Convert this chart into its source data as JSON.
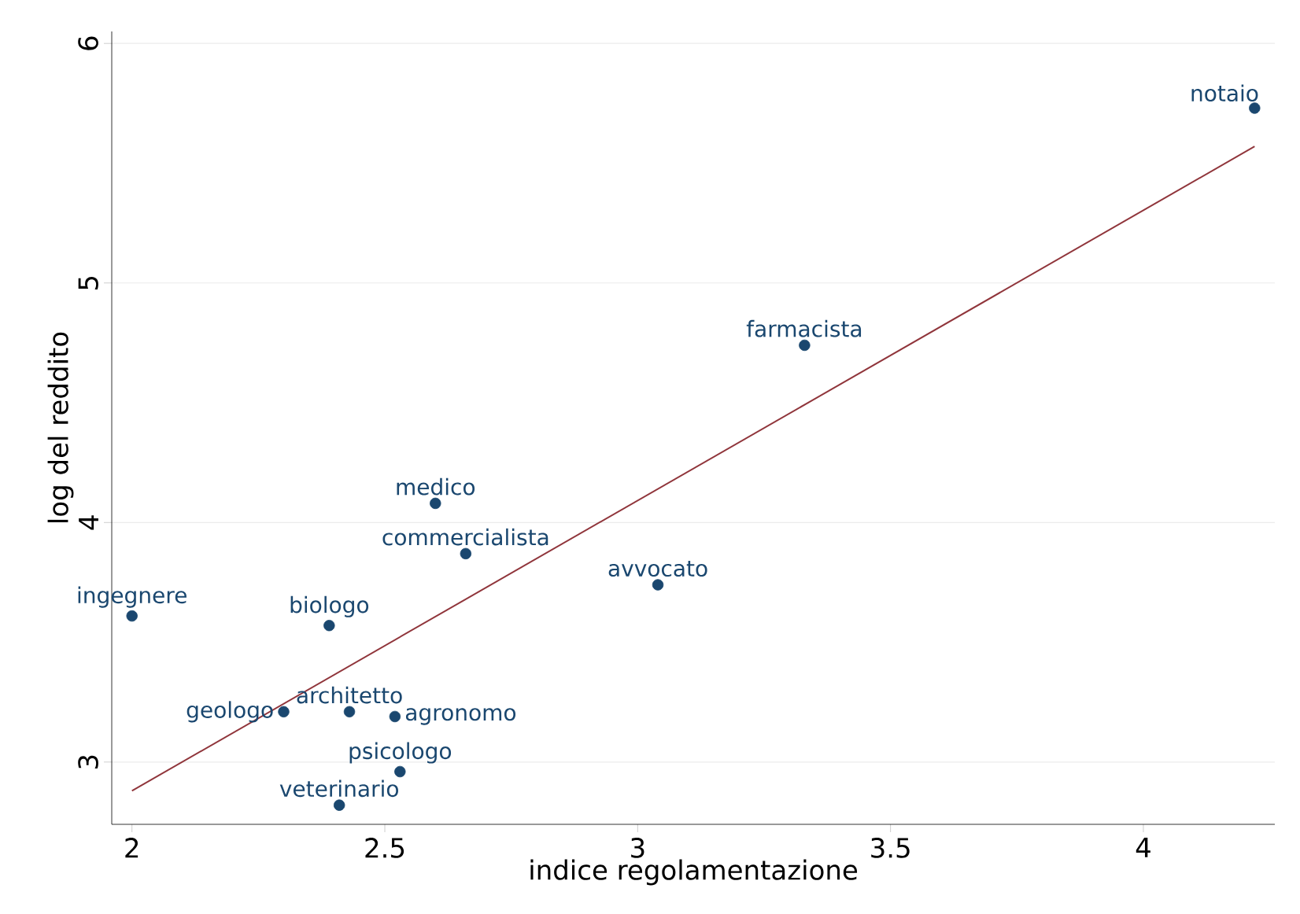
{
  "chart_data": {
    "type": "scatter",
    "xlabel": "indice regolamentazione",
    "ylabel": "log del reddito",
    "xlim": [
      1.96,
      4.26
    ],
    "ylim": [
      2.74,
      6.05
    ],
    "xticks": [
      2,
      2.5,
      3,
      3.5,
      4
    ],
    "yticks": [
      3,
      4,
      5,
      6
    ],
    "grid": "y",
    "marker": "circle",
    "series": [
      {
        "color": "#1a476f",
        "x": [
          4.22,
          3.33,
          2.6,
          2.66,
          3.04,
          2.0,
          2.39,
          2.3,
          2.43,
          2.52,
          2.53,
          2.41
        ],
        "values": [
          5.73,
          4.74,
          4.08,
          3.87,
          3.74,
          3.61,
          3.57,
          3.21,
          3.21,
          3.19,
          2.96,
          2.82
        ]
      },
      {
        "type": "line",
        "marker": "none",
        "color": "#90353b",
        "x": [
          2.0,
          4.22
        ],
        "values": [
          2.88,
          5.57
        ]
      }
    ],
    "annotations": [
      {
        "text": "notaio",
        "x": 4.22,
        "y": 5.73
      },
      {
        "text": "farmacista",
        "x": 3.33,
        "y": 4.74
      },
      {
        "text": "medico",
        "x": 2.6,
        "y": 4.08
      },
      {
        "text": "commercialista",
        "x": 2.66,
        "y": 3.87
      },
      {
        "text": "avvocato",
        "x": 3.04,
        "y": 3.74
      },
      {
        "text": "ingegnere",
        "x": 2.0,
        "y": 3.61
      },
      {
        "text": "biologo",
        "x": 2.39,
        "y": 3.57
      },
      {
        "text": "geologo",
        "x": 2.3,
        "y": 3.21
      },
      {
        "text": "architetto",
        "x": 2.43,
        "y": 3.21
      },
      {
        "text": "agronomo",
        "x": 2.52,
        "y": 3.19
      },
      {
        "text": "psicologo",
        "x": 2.53,
        "y": 2.96
      },
      {
        "text": "veterinario",
        "x": 2.41,
        "y": 2.82
      }
    ]
  }
}
